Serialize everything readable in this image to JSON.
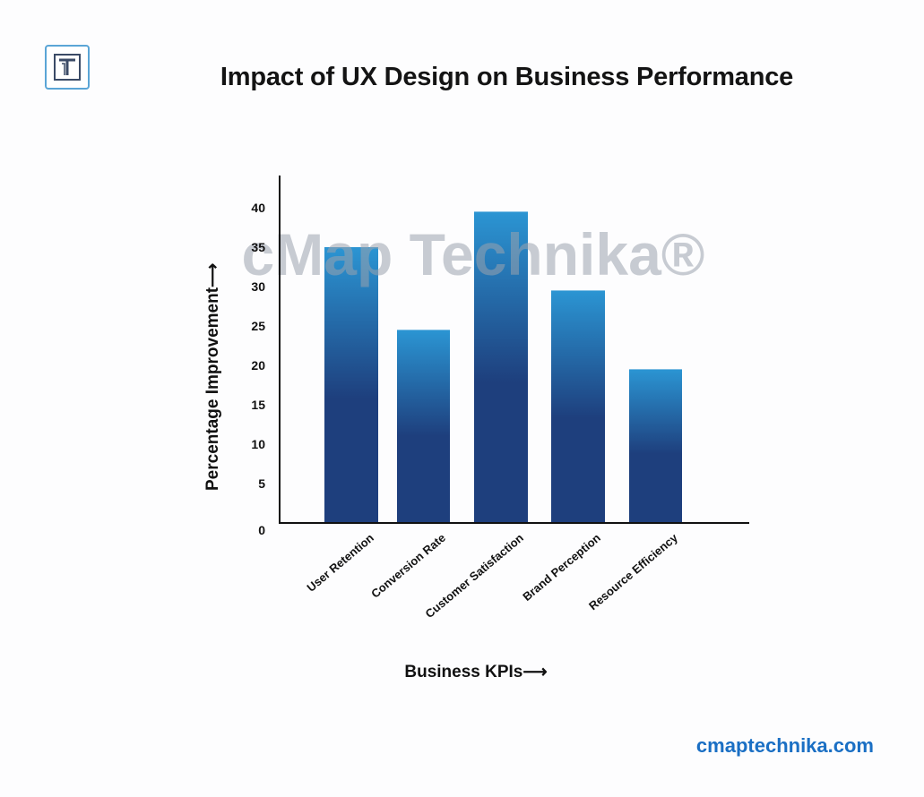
{
  "brand": {
    "logo_letter": "T",
    "website": "cmaptechnika.com",
    "watermark": "cMap Technika®",
    "accent": "#1a6fc4"
  },
  "chart_data": {
    "type": "bar",
    "title": "Impact of UX Design on Business Performance",
    "xlabel": "Business KPIs⟶",
    "ylabel": "Percentage Improvement⟶",
    "categories": [
      "User Retention",
      "Conversion Rate",
      "Customer Satisfaction",
      "Brand Perception",
      "Resource Efficiency"
    ],
    "values": [
      35,
      24.5,
      39.5,
      29.5,
      19.5
    ],
    "yticks": [
      0,
      5,
      10,
      15,
      20,
      25,
      30,
      35,
      40
    ],
    "ylim": [
      0,
      44
    ],
    "grid": false,
    "colors": {
      "top": "#2b95d3",
      "bottom": "#1e3f7d"
    }
  }
}
